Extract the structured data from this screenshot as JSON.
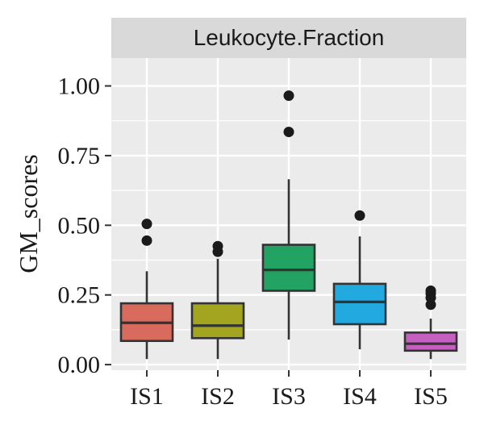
{
  "chart_data": {
    "type": "boxplot",
    "facet_label": "Leukocyte.Fraction",
    "xlabel": "",
    "ylabel": "GM_scores",
    "ylim": [
      -0.02,
      1.1
    ],
    "yticks": [
      0.0,
      0.25,
      0.5,
      0.75,
      1.0
    ],
    "ytick_labels": [
      "0.00",
      "0.25",
      "0.50",
      "0.75",
      "1.00"
    ],
    "grid": true,
    "categories": [
      "IS1",
      "IS2",
      "IS3",
      "IS4",
      "IS5"
    ],
    "boxes": [
      {
        "category": "IS1",
        "color": "#d86b5e",
        "whisker_low": 0.02,
        "q1": 0.085,
        "median": 0.15,
        "q3": 0.22,
        "whisker_high": 0.335,
        "outliers": [
          0.445,
          0.505
        ]
      },
      {
        "category": "IS2",
        "color": "#a3a520",
        "whisker_low": 0.02,
        "q1": 0.095,
        "median": 0.14,
        "q3": 0.22,
        "whisker_high": 0.38,
        "outliers": [
          0.405,
          0.425
        ]
      },
      {
        "category": "IS3",
        "color": "#22a363",
        "whisker_low": 0.09,
        "q1": 0.265,
        "median": 0.34,
        "q3": 0.43,
        "whisker_high": 0.665,
        "outliers": [
          0.835,
          0.965
        ]
      },
      {
        "category": "IS4",
        "color": "#21a9e0",
        "whisker_low": 0.055,
        "q1": 0.145,
        "median": 0.225,
        "q3": 0.29,
        "whisker_high": 0.46,
        "outliers": [
          0.535
        ]
      },
      {
        "category": "IS5",
        "color": "#c55fc0",
        "whisker_low": 0.02,
        "q1": 0.05,
        "median": 0.075,
        "q3": 0.115,
        "whisker_high": 0.165,
        "outliers": [
          0.215,
          0.24,
          0.255,
          0.265
        ]
      }
    ],
    "colors": {
      "panel_background": "#ebebeb",
      "strip_background": "#d9d9d9",
      "grid_line": "#ffffff",
      "box_outline": "#333333",
      "outlier": "#1a1a1a"
    }
  }
}
